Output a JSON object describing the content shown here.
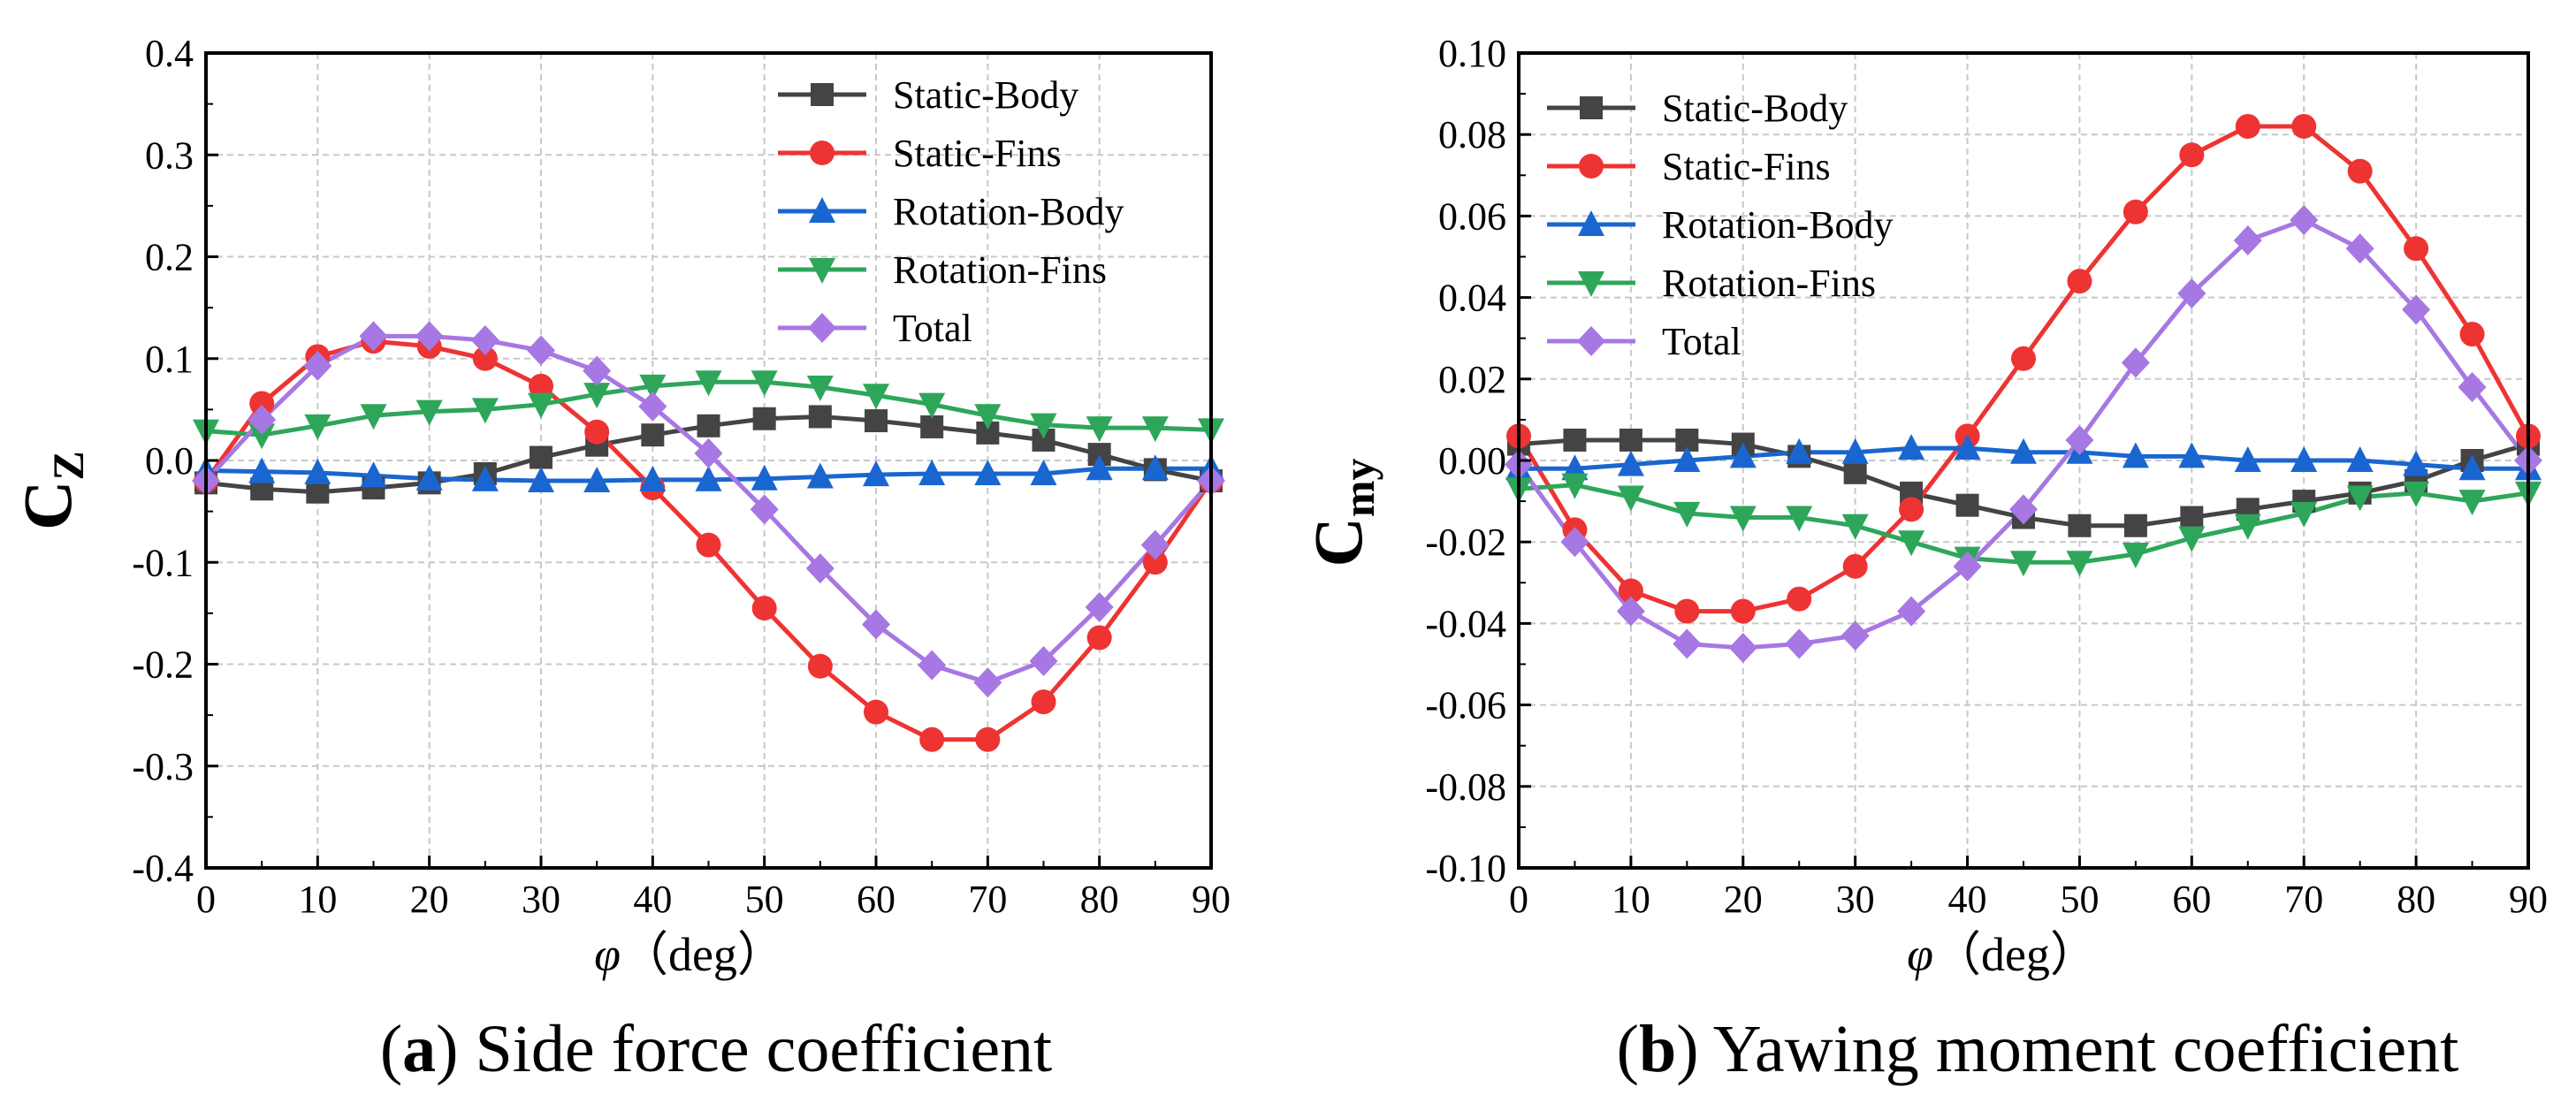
{
  "chart_data": [
    {
      "type": "line",
      "panel_label": "(a)",
      "panel_letter": "a",
      "caption": "Side force coefficient",
      "ylabel_main": "C",
      "ylabel_sub": "Z",
      "xlabel_symbol": "φ",
      "xlabel_unit": "（deg）",
      "xlim": [
        0,
        90
      ],
      "ylim": [
        -0.4,
        0.4
      ],
      "xticks": [
        0,
        10,
        20,
        30,
        40,
        50,
        60,
        70,
        80,
        90
      ],
      "yticks": [
        -0.4,
        -0.3,
        -0.2,
        -0.1,
        0.0,
        0.1,
        0.2,
        0.3,
        0.4
      ],
      "ytick_labels": [
        "-0.4",
        "-0.3",
        "-0.2",
        "-0.1",
        "0.0",
        "0.1",
        "0.2",
        "0.3",
        "0.4"
      ],
      "grid": true,
      "legend_position": "top-right",
      "x": [
        0,
        5,
        10,
        15,
        20,
        25,
        30,
        35,
        40,
        45,
        50,
        55,
        60,
        65,
        70,
        75,
        80,
        85,
        90
      ],
      "series": [
        {
          "name": "Static-Body",
          "color": "#444444",
          "marker": "square",
          "values": [
            -0.022,
            -0.028,
            -0.031,
            -0.027,
            -0.022,
            -0.013,
            0.003,
            0.015,
            0.025,
            0.034,
            0.041,
            0.043,
            0.039,
            0.033,
            0.027,
            0.02,
            0.006,
            -0.009,
            -0.02
          ]
        },
        {
          "name": "Static-Fins",
          "color": "#ee3333",
          "marker": "circle",
          "values": [
            -0.02,
            0.056,
            0.102,
            0.117,
            0.112,
            0.1,
            0.073,
            0.028,
            -0.027,
            -0.083,
            -0.145,
            -0.202,
            -0.247,
            -0.274,
            -0.274,
            -0.237,
            -0.174,
            -0.1,
            -0.02
          ]
        },
        {
          "name": "Rotation-Body",
          "color": "#1a66d0",
          "marker": "triangle-up",
          "values": [
            -0.01,
            -0.011,
            -0.012,
            -0.015,
            -0.018,
            -0.019,
            -0.02,
            -0.02,
            -0.019,
            -0.019,
            -0.018,
            -0.016,
            -0.014,
            -0.013,
            -0.013,
            -0.013,
            -0.008,
            -0.008,
            -0.008
          ]
        },
        {
          "name": "Rotation-Fins",
          "color": "#2ea65a",
          "marker": "triangle-down",
          "values": [
            0.029,
            0.025,
            0.034,
            0.044,
            0.048,
            0.05,
            0.055,
            0.065,
            0.073,
            0.077,
            0.077,
            0.072,
            0.064,
            0.055,
            0.044,
            0.035,
            0.032,
            0.032,
            0.03
          ]
        },
        {
          "name": "Total",
          "color": "#a777e3",
          "marker": "diamond",
          "values": [
            -0.02,
            0.04,
            0.093,
            0.122,
            0.122,
            0.118,
            0.108,
            0.088,
            0.053,
            0.007,
            -0.048,
            -0.106,
            -0.161,
            -0.201,
            -0.218,
            -0.197,
            -0.144,
            -0.083,
            -0.02
          ]
        }
      ]
    },
    {
      "type": "line",
      "panel_label": "(b)",
      "panel_letter": "b",
      "caption": "Yawing moment coefficient",
      "ylabel_main": "C",
      "ylabel_sub": "my",
      "xlabel_symbol": "φ",
      "xlabel_unit": "（deg）",
      "xlim": [
        0,
        90
      ],
      "ylim": [
        -0.1,
        0.1
      ],
      "xticks": [
        0,
        10,
        20,
        30,
        40,
        50,
        60,
        70,
        80,
        90
      ],
      "yticks": [
        -0.1,
        -0.08,
        -0.06,
        -0.04,
        -0.02,
        0.0,
        0.02,
        0.04,
        0.06,
        0.08,
        0.1
      ],
      "ytick_labels": [
        "-0.10",
        "-0.08",
        "-0.06",
        "-0.04",
        "-0.02",
        "0.00",
        "0.02",
        "0.04",
        "0.06",
        "0.08",
        "0.10"
      ],
      "grid": true,
      "legend_position": "top-left",
      "x": [
        0,
        5,
        10,
        15,
        20,
        25,
        30,
        35,
        40,
        45,
        50,
        55,
        60,
        65,
        70,
        75,
        80,
        85,
        90
      ],
      "series": [
        {
          "name": "Static-Body",
          "color": "#444444",
          "marker": "square",
          "values": [
            0.004,
            0.005,
            0.005,
            0.005,
            0.004,
            0.001,
            -0.003,
            -0.008,
            -0.011,
            -0.014,
            -0.016,
            -0.016,
            -0.014,
            -0.012,
            -0.01,
            -0.008,
            -0.005,
            0.0,
            0.004
          ]
        },
        {
          "name": "Static-Fins",
          "color": "#ee3333",
          "marker": "circle",
          "values": [
            0.006,
            -0.017,
            -0.032,
            -0.037,
            -0.037,
            -0.034,
            -0.026,
            -0.012,
            0.006,
            0.025,
            0.044,
            0.061,
            0.075,
            0.082,
            0.082,
            0.071,
            0.052,
            0.031,
            0.006
          ]
        },
        {
          "name": "Rotation-Body",
          "color": "#1a66d0",
          "marker": "triangle-up",
          "values": [
            -0.002,
            -0.002,
            -0.001,
            0.0,
            0.001,
            0.002,
            0.002,
            0.003,
            0.003,
            0.002,
            0.002,
            0.001,
            0.001,
            0.0,
            0.0,
            0.0,
            -0.001,
            -0.002,
            -0.002
          ]
        },
        {
          "name": "Rotation-Fins",
          "color": "#2ea65a",
          "marker": "triangle-down",
          "values": [
            -0.007,
            -0.006,
            -0.009,
            -0.013,
            -0.014,
            -0.014,
            -0.016,
            -0.02,
            -0.024,
            -0.025,
            -0.025,
            -0.023,
            -0.019,
            -0.016,
            -0.013,
            -0.009,
            -0.008,
            -0.01,
            -0.008
          ]
        },
        {
          "name": "Total",
          "color": "#a777e3",
          "marker": "diamond",
          "values": [
            -0.001,
            -0.02,
            -0.037,
            -0.045,
            -0.046,
            -0.045,
            -0.043,
            -0.037,
            -0.026,
            -0.012,
            0.005,
            0.024,
            0.041,
            0.054,
            0.059,
            0.052,
            0.037,
            0.018,
            0.0
          ]
        }
      ]
    }
  ]
}
